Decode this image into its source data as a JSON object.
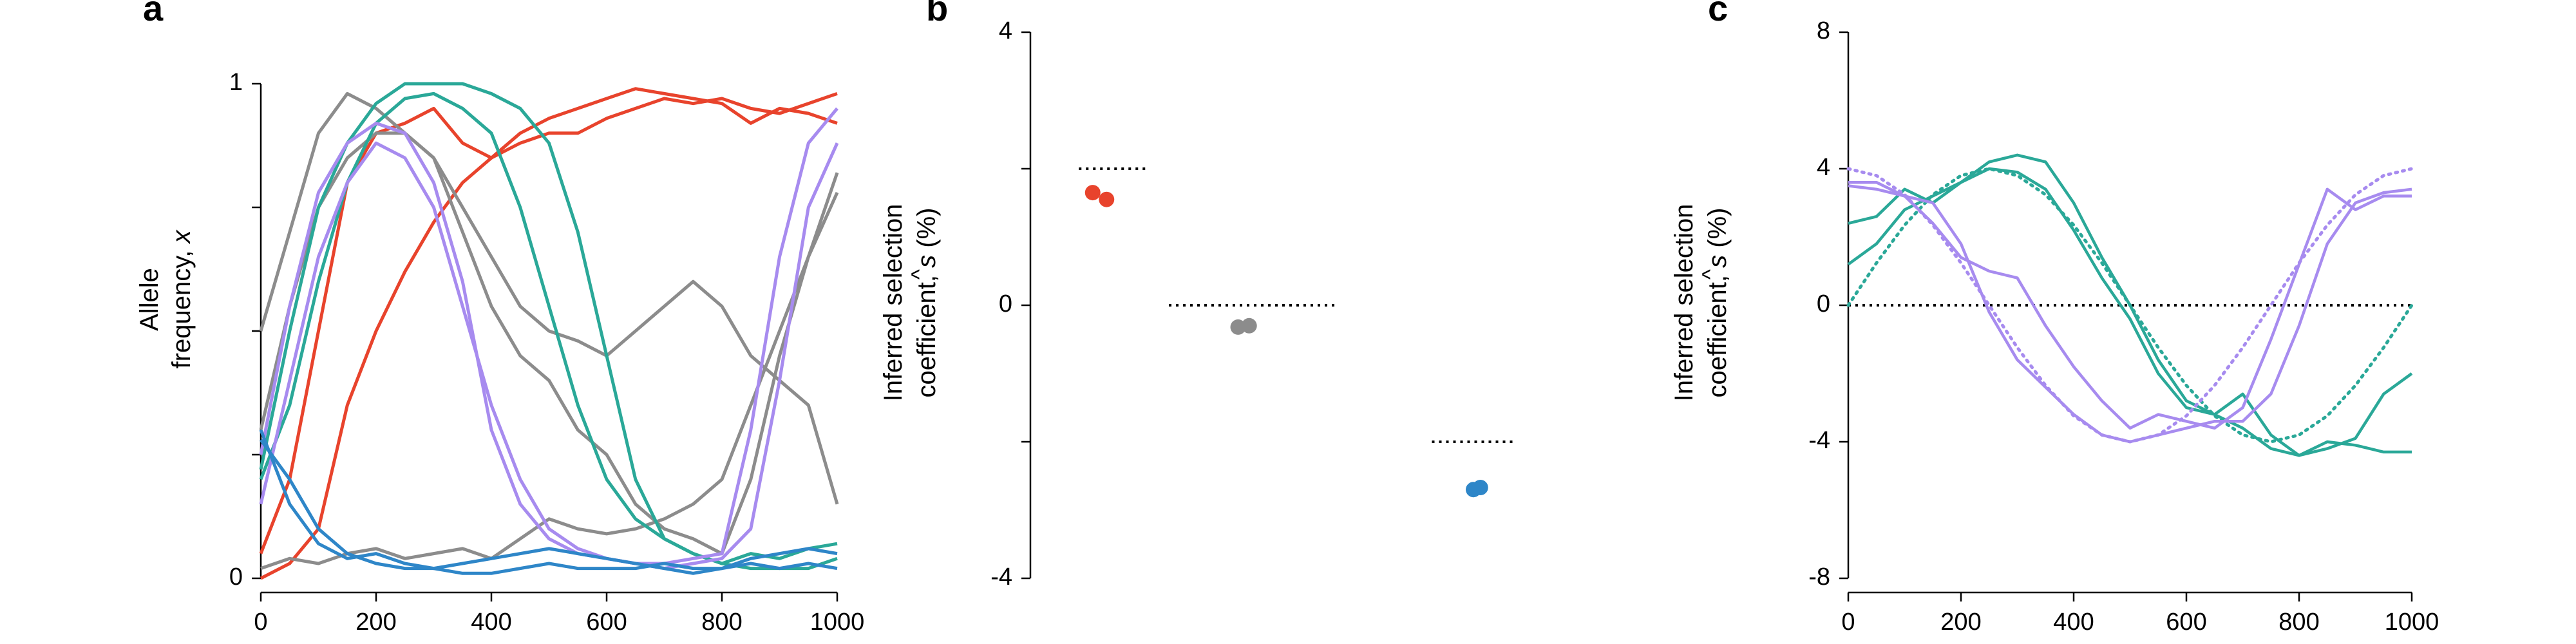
{
  "colors": {
    "red": "#E8432C",
    "gray": "#8C8C8C",
    "blue": "#2E86C8",
    "teal": "#2AA898",
    "purple": "#A78BEF",
    "true_line": "#000000"
  },
  "chart_data": [
    {
      "panel": "a",
      "type": "line",
      "xlabel": "",
      "ylabel_line1": "Allele",
      "ylabel_line2": "frequency, ",
      "ylabel_var": "x",
      "xlim": [
        0,
        1000
      ],
      "ylim": [
        0,
        1
      ],
      "xticks": [
        "0",
        "200",
        "400",
        "600",
        "800",
        "1000"
      ],
      "yticks": [
        "0",
        "1"
      ],
      "series": [
        {
          "color": "red",
          "x": [
            0,
            50,
            100,
            150,
            200,
            250,
            300,
            350,
            400,
            450,
            500,
            550,
            600,
            650,
            700,
            750,
            800,
            850,
            900,
            950,
            1000
          ],
          "y": [
            0,
            0.03,
            0.1,
            0.35,
            0.5,
            0.62,
            0.72,
            0.8,
            0.85,
            0.88,
            0.9,
            0.9,
            0.93,
            0.95,
            0.97,
            0.96,
            0.97,
            0.95,
            0.94,
            0.96,
            0.98
          ]
        },
        {
          "color": "red",
          "x": [
            0,
            50,
            100,
            150,
            200,
            250,
            300,
            350,
            400,
            450,
            500,
            550,
            600,
            650,
            700,
            750,
            800,
            850,
            900,
            950,
            1000
          ],
          "y": [
            0.05,
            0.2,
            0.5,
            0.8,
            0.9,
            0.92,
            0.95,
            0.88,
            0.85,
            0.9,
            0.93,
            0.95,
            0.97,
            0.99,
            0.98,
            0.97,
            0.96,
            0.92,
            0.95,
            0.94,
            0.92
          ]
        },
        {
          "color": "gray",
          "x": [
            0,
            50,
            100,
            150,
            200,
            250,
            300,
            350,
            400,
            450,
            500,
            550,
            600,
            650,
            700,
            750,
            800,
            850,
            900,
            950,
            1000
          ],
          "y": [
            0.5,
            0.7,
            0.9,
            0.98,
            0.95,
            0.9,
            0.85,
            0.75,
            0.65,
            0.55,
            0.5,
            0.48,
            0.45,
            0.5,
            0.55,
            0.6,
            0.55,
            0.45,
            0.4,
            0.35,
            0.15
          ]
        },
        {
          "color": "gray",
          "x": [
            0,
            50,
            100,
            150,
            200,
            250,
            300,
            350,
            400,
            450,
            500,
            550,
            600,
            650,
            700,
            750,
            800,
            850,
            900,
            950,
            1000
          ],
          "y": [
            0.3,
            0.55,
            0.75,
            0.85,
            0.9,
            0.9,
            0.85,
            0.7,
            0.55,
            0.45,
            0.4,
            0.3,
            0.25,
            0.15,
            0.1,
            0.08,
            0.05,
            0.2,
            0.45,
            0.65,
            0.82
          ]
        },
        {
          "color": "gray",
          "x": [
            0,
            50,
            100,
            150,
            200,
            250,
            300,
            350,
            400,
            450,
            500,
            550,
            600,
            650,
            700,
            750,
            800,
            850,
            900,
            950,
            1000
          ],
          "y": [
            0.02,
            0.04,
            0.03,
            0.05,
            0.06,
            0.04,
            0.05,
            0.06,
            0.04,
            0.08,
            0.12,
            0.1,
            0.09,
            0.1,
            0.12,
            0.15,
            0.2,
            0.35,
            0.5,
            0.65,
            0.78
          ]
        },
        {
          "color": "teal",
          "x": [
            0,
            50,
            100,
            150,
            200,
            250,
            300,
            350,
            400,
            450,
            500,
            550,
            600,
            650,
            700,
            750,
            800,
            850,
            900,
            950,
            1000
          ],
          "y": [
            0.22,
            0.5,
            0.75,
            0.88,
            0.96,
            1.0,
            1.0,
            1.0,
            0.98,
            0.95,
            0.88,
            0.7,
            0.45,
            0.2,
            0.08,
            0.05,
            0.03,
            0.02,
            0.02,
            0.02,
            0.04
          ]
        },
        {
          "color": "teal",
          "x": [
            0,
            50,
            100,
            150,
            200,
            250,
            300,
            350,
            400,
            450,
            500,
            550,
            600,
            650,
            700,
            750,
            800,
            850,
            900,
            950,
            1000
          ],
          "y": [
            0.2,
            0.35,
            0.6,
            0.8,
            0.92,
            0.97,
            0.98,
            0.95,
            0.9,
            0.75,
            0.55,
            0.35,
            0.2,
            0.12,
            0.08,
            0.05,
            0.03,
            0.05,
            0.04,
            0.06,
            0.07
          ]
        },
        {
          "color": "purple",
          "x": [
            0,
            50,
            100,
            150,
            200,
            250,
            300,
            350,
            400,
            450,
            500,
            550,
            600,
            650,
            700,
            750,
            800,
            850,
            900,
            950,
            1000
          ],
          "y": [
            0.25,
            0.55,
            0.78,
            0.88,
            0.92,
            0.9,
            0.8,
            0.6,
            0.3,
            0.15,
            0.08,
            0.05,
            0.04,
            0.03,
            0.03,
            0.04,
            0.05,
            0.3,
            0.65,
            0.88,
            0.95
          ]
        },
        {
          "color": "purple",
          "x": [
            0,
            50,
            100,
            150,
            200,
            250,
            300,
            350,
            400,
            450,
            500,
            550,
            600,
            650,
            700,
            750,
            800,
            850,
            900,
            950,
            1000
          ],
          "y": [
            0.15,
            0.4,
            0.65,
            0.8,
            0.88,
            0.85,
            0.75,
            0.55,
            0.35,
            0.2,
            0.1,
            0.06,
            0.04,
            0.03,
            0.02,
            0.03,
            0.04,
            0.1,
            0.4,
            0.75,
            0.88
          ]
        },
        {
          "color": "blue",
          "x": [
            0,
            50,
            100,
            150,
            200,
            250,
            300,
            350,
            400,
            450,
            500,
            550,
            600,
            650,
            700,
            750,
            800,
            850,
            900,
            950,
            1000
          ],
          "y": [
            0.28,
            0.2,
            0.1,
            0.05,
            0.03,
            0.02,
            0.02,
            0.01,
            0.01,
            0.02,
            0.03,
            0.02,
            0.02,
            0.02,
            0.03,
            0.02,
            0.02,
            0.03,
            0.02,
            0.03,
            0.02
          ]
        },
        {
          "color": "blue",
          "x": [
            0,
            50,
            100,
            150,
            200,
            250,
            300,
            350,
            400,
            450,
            500,
            550,
            600,
            650,
            700,
            750,
            800,
            850,
            900,
            950,
            1000
          ],
          "y": [
            0.3,
            0.15,
            0.07,
            0.04,
            0.05,
            0.03,
            0.02,
            0.03,
            0.04,
            0.05,
            0.06,
            0.05,
            0.04,
            0.03,
            0.02,
            0.01,
            0.02,
            0.04,
            0.05,
            0.06,
            0.05
          ]
        }
      ]
    },
    {
      "panel": "b",
      "type": "scatter",
      "ylabel_line1": "Inferred selection",
      "ylabel_line2": "coefficient, ",
      "ylabel_var": "s",
      "ylabel_unit": " (%)",
      "ylim": [
        -4,
        4
      ],
      "yticks": [
        "-4",
        "0",
        "4"
      ],
      "true_values": [
        {
          "x_center": 0.6,
          "half_width": 0.25,
          "y": 2
        },
        {
          "x_center": 1.6,
          "half_width": 0.6,
          "y": 0
        },
        {
          "x_center": 3.2,
          "half_width": 0.3,
          "y": -2
        }
      ],
      "points": [
        {
          "x": 0.45,
          "y": 1.65,
          "color": "red"
        },
        {
          "x": 0.55,
          "y": 1.55,
          "color": "red"
        },
        {
          "x": 1.5,
          "y": -0.32,
          "color": "gray"
        },
        {
          "x": 1.58,
          "y": -0.3,
          "color": "gray"
        },
        {
          "x": 3.2,
          "y": -2.7,
          "color": "blue"
        },
        {
          "x": 3.25,
          "y": -2.67,
          "color": "blue"
        }
      ],
      "xlim": [
        0,
        4
      ]
    },
    {
      "panel": "c",
      "type": "line",
      "ylabel_line1": "Inferred selection",
      "ylabel_line2": "coefficient, ",
      "ylabel_var": "s",
      "ylabel_unit": " (%)",
      "xlim": [
        0,
        1000
      ],
      "ylim": [
        -8,
        8
      ],
      "xticks": [
        "0",
        "200",
        "400",
        "600",
        "800",
        "1000"
      ],
      "yticks": [
        "-8",
        "-4",
        "0",
        "4",
        "8"
      ],
      "zero_line": 0,
      "series": [
        {
          "color": "teal",
          "style": "solid",
          "x": [
            0,
            50,
            100,
            150,
            200,
            250,
            300,
            350,
            400,
            450,
            500,
            550,
            600,
            650,
            700,
            750,
            800,
            850,
            900,
            950,
            1000
          ],
          "y": [
            1.2,
            1.8,
            2.8,
            3.2,
            3.6,
            4.2,
            4.4,
            4.2,
            3.0,
            1.4,
            0,
            -1.6,
            -2.8,
            -3.2,
            -3.6,
            -4.2,
            -4.4,
            -4.2,
            -3.9,
            -2.6,
            -2.0
          ]
        },
        {
          "color": "teal",
          "style": "solid",
          "x": [
            0,
            50,
            100,
            150,
            200,
            250,
            300,
            350,
            400,
            450,
            500,
            550,
            600,
            650,
            700,
            750,
            800,
            850,
            900,
            950,
            1000
          ],
          "y": [
            2.4,
            2.6,
            3.4,
            3.0,
            3.6,
            4.0,
            3.9,
            3.4,
            2.2,
            0.8,
            -0.4,
            -2.0,
            -3.0,
            -3.2,
            -2.6,
            -3.8,
            -4.4,
            -4.0,
            -4.1,
            -4.3,
            -4.3
          ]
        },
        {
          "color": "teal",
          "style": "dotted",
          "x": [
            0,
            50,
            100,
            150,
            200,
            250,
            300,
            350,
            400,
            450,
            500,
            550,
            600,
            650,
            700,
            750,
            800,
            850,
            900,
            950,
            1000
          ],
          "y": [
            0,
            1.24,
            2.35,
            3.24,
            3.8,
            4.0,
            3.8,
            3.24,
            2.35,
            1.24,
            0,
            -1.24,
            -2.35,
            -3.24,
            -3.8,
            -4.0,
            -3.8,
            -3.24,
            -2.35,
            -1.24,
            0
          ]
        },
        {
          "color": "purple",
          "style": "solid",
          "x": [
            0,
            50,
            100,
            150,
            200,
            250,
            300,
            350,
            400,
            450,
            500,
            550,
            600,
            650,
            700,
            750,
            800,
            850,
            900,
            950,
            1000
          ],
          "y": [
            3.6,
            3.6,
            3.2,
            2.4,
            1.4,
            1.0,
            0.8,
            -0.6,
            -1.8,
            -2.8,
            -3.6,
            -3.2,
            -3.4,
            -3.6,
            -3.0,
            -1.0,
            1.2,
            3.4,
            2.8,
            3.2,
            3.2
          ]
        },
        {
          "color": "purple",
          "style": "solid",
          "x": [
            0,
            50,
            100,
            150,
            200,
            250,
            300,
            350,
            400,
            450,
            500,
            550,
            600,
            650,
            700,
            750,
            800,
            850,
            900,
            950,
            1000
          ],
          "y": [
            3.5,
            3.4,
            3.2,
            3.0,
            1.8,
            -0.2,
            -1.6,
            -2.4,
            -3.2,
            -3.8,
            -4.0,
            -3.8,
            -3.6,
            -3.4,
            -3.4,
            -2.6,
            -0.6,
            1.8,
            3.0,
            3.3,
            3.4
          ]
        },
        {
          "color": "purple",
          "style": "dotted",
          "x": [
            0,
            50,
            100,
            150,
            200,
            250,
            300,
            350,
            400,
            450,
            500,
            550,
            600,
            650,
            700,
            750,
            800,
            850,
            900,
            950,
            1000
          ],
          "y": [
            4.0,
            3.8,
            3.24,
            2.35,
            1.24,
            0,
            -1.24,
            -2.35,
            -3.24,
            -3.8,
            -4.0,
            -3.8,
            -3.24,
            -2.35,
            -1.24,
            0,
            1.24,
            2.35,
            3.24,
            3.8,
            4.0
          ]
        }
      ]
    }
  ]
}
